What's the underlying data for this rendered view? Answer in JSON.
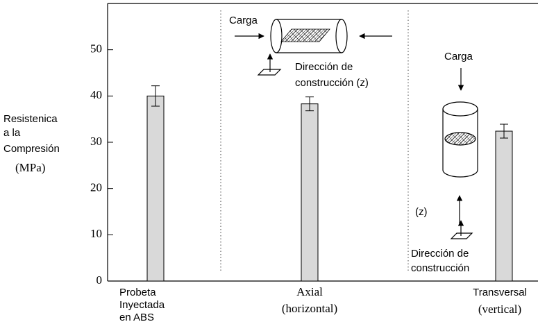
{
  "chart_data": {
    "type": "bar",
    "y_label": [
      "Resistenica",
      "a la",
      "Compresión",
      "(MPa)"
    ],
    "categories": [
      [
        "Probeta",
        "Inyectada",
        "en ABS"
      ],
      [
        "Axial",
        "(horizontal)"
      ],
      [
        "Transversal",
        "(vertical)"
      ]
    ],
    "values": [
      40,
      38.3,
      32.4
    ],
    "errors": [
      2.2,
      1.5,
      1.5
    ],
    "color": "#d9d9d9",
    "ylim": [
      0,
      60
    ],
    "yticks": [
      0,
      10,
      20,
      30,
      40,
      50
    ],
    "annotations": [
      "Carga",
      "Dirección de",
      "construcción (z)",
      "Carga",
      "(z)",
      "Dirección de",
      "construcción"
    ]
  }
}
